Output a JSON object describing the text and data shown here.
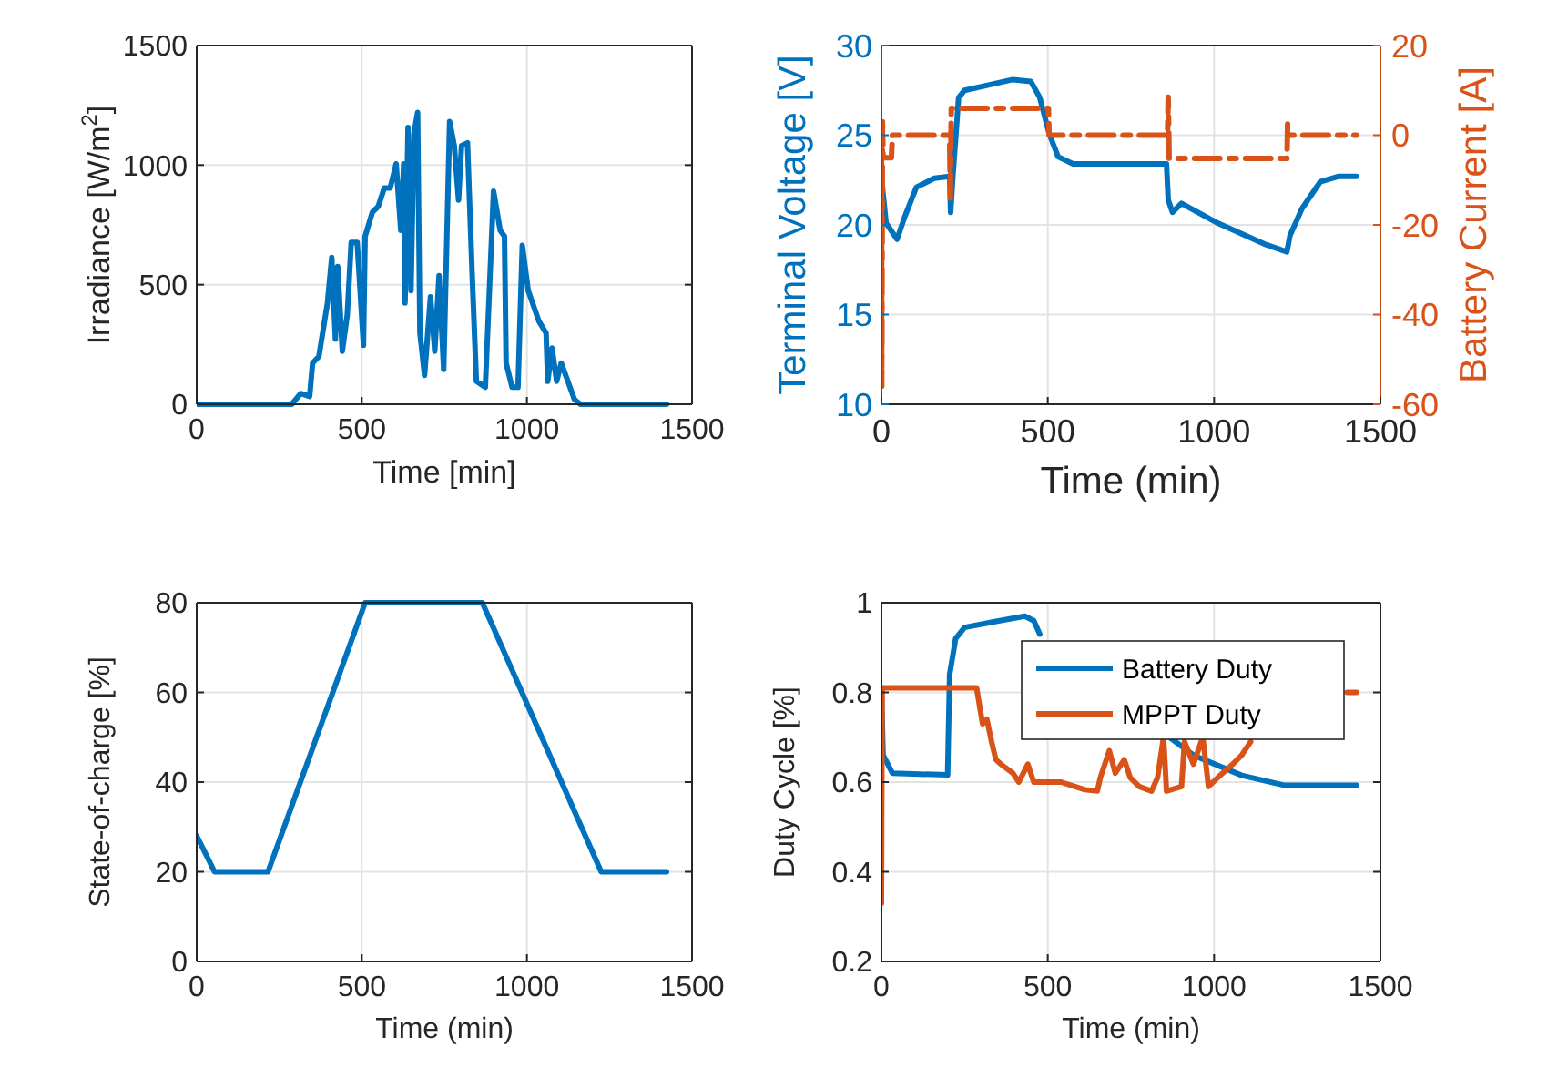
{
  "chart_data": [
    {
      "type": "line",
      "xlabel": "Time [min]",
      "ylabel": "Irradiance [W/m$^{2}$]",
      "xlim": [
        0,
        1500
      ],
      "xticks": [
        0,
        500,
        1000,
        1500
      ],
      "ylim": [
        0,
        1500
      ],
      "yticks": [
        0,
        500,
        1000,
        1500
      ],
      "grid": true,
      "legend": false,
      "line_style": "solid",
      "series": [
        {
          "color": "#0072bd",
          "x": [
            0,
            288,
            315,
            342,
            351,
            370,
            396,
            409,
            420,
            427,
            441,
            456,
            468,
            486,
            505,
            510,
            532,
            550,
            568,
            586,
            604,
            618,
            627,
            631,
            640,
            649,
            658,
            669,
            676,
            690,
            708,
            721,
            734,
            748,
            766,
            780,
            793,
            802,
            820,
            834,
            847,
            874,
            899,
            919,
            932,
            937,
            955,
            973,
            986,
            1004,
            1036,
            1058,
            1063,
            1076,
            1090,
            1104,
            1144,
            1162,
            1423
          ],
          "values": [
            0,
            0,
            45,
            33,
            172,
            200,
            424,
            614,
            273,
            576,
            222,
            374,
            677,
            677,
            247,
            702,
            803,
            828,
            904,
            904,
            1005,
            727,
            1005,
            424,
            1157,
            475,
            1131,
            1220,
            298,
            121,
            449,
            222,
            538,
            146,
            1182,
            1081,
            854,
            1081,
            1093,
            550,
            96,
            71,
            891,
            727,
            702,
            172,
            71,
            71,
            664,
            475,
            348,
            298,
            96,
            235,
            96,
            172,
            20,
            0,
            0
          ]
        }
      ]
    },
    {
      "type": "line",
      "xlabel": "Time (min)",
      "ylabel": "Terminal Voltage [V]",
      "y2label": "Battery Current [A]",
      "xlim": [
        0,
        1500
      ],
      "xticks": [
        0,
        500,
        1000,
        1500
      ],
      "ylim": [
        10,
        30
      ],
      "yticks": [
        10,
        15,
        20,
        25,
        30
      ],
      "y2lim": [
        -60,
        20
      ],
      "y2ticks": [
        -60,
        -40,
        -20,
        0,
        20
      ],
      "grid": true,
      "legend": false,
      "series": [
        {
          "color": "#0072bd",
          "line_style": "solid",
          "x": [
            0,
            3,
            14,
            47,
            69,
            105,
            159,
            205,
            208,
            214,
            232,
            250,
            322,
            395,
            449,
            476,
            504,
            531,
            576,
            857,
            862,
            875,
            902,
            1011,
            1156,
            1219,
            1228,
            1264,
            1319,
            1373,
            1428
          ],
          "values": [
            22.1,
            22.1,
            20.1,
            19.2,
            20.4,
            22.1,
            22.6,
            22.7,
            20.7,
            22.5,
            27.1,
            27.5,
            27.8,
            28.1,
            28,
            27.1,
            25.1,
            23.8,
            23.4,
            23.4,
            21.4,
            20.7,
            21.2,
            20.1,
            18.9,
            18.5,
            19.4,
            20.9,
            22.4,
            22.7,
            22.7
          ]
        },
        {
          "color": "#d95319",
          "axis": "y2",
          "line_style": "dashed",
          "x": [
            0,
            1,
            3,
            5,
            30,
            33,
            205,
            207,
            210,
            502,
            504,
            860,
            862,
            865,
            1219,
            1221,
            1223,
            1428
          ],
          "values": [
            3,
            -56,
            3,
            -5,
            -5,
            0,
            0,
            -14,
            6,
            6,
            0,
            0,
            8.5,
            -5.2,
            -5.2,
            2.5,
            0,
            0
          ]
        }
      ]
    },
    {
      "type": "line",
      "xlabel": "Time (min)",
      "ylabel": "State-of-charge [%]",
      "xlim": [
        0,
        1500
      ],
      "xticks": [
        0,
        500,
        1000,
        1500
      ],
      "ylim": [
        0,
        80
      ],
      "yticks": [
        0,
        20,
        40,
        60,
        80
      ],
      "grid": true,
      "legend": false,
      "line_style": "solid",
      "series": [
        {
          "color": "#0072bd",
          "x": [
            0,
            54,
            216,
            510,
            865,
            1225,
            1423
          ],
          "values": [
            28,
            20,
            20,
            80,
            80,
            20,
            20
          ]
        }
      ]
    },
    {
      "type": "line",
      "xlabel": "Time (min)",
      "ylabel": "Duty Cycle [%]",
      "xlim": [
        0,
        1500
      ],
      "xticks": [
        0,
        500,
        1000,
        1500
      ],
      "ylim": [
        0.2,
        1
      ],
      "yticks": [
        0.2,
        0.4,
        0.6,
        0.8,
        1
      ],
      "grid": true,
      "legend": "top right",
      "line_style": "solid",
      "series": [
        {
          "name": "Battery Duty",
          "color": "#0072bd",
          "x": [
            0,
            5,
            33,
            199,
            205,
            223,
            250,
            341,
            431,
            458,
            476,
            600,
            866,
            938,
            1083,
            1210,
            1428
          ],
          "values": [
            0.81,
            0.66,
            0.62,
            0.616,
            0.84,
            0.92,
            0.945,
            0.958,
            0.97,
            0.96,
            0.93,
            null,
            0.7,
            0.66,
            0.615,
            0.593,
            0.593
          ]
        },
        {
          "name": "MPPT Duty",
          "color": "#d95319",
          "x": [
            0,
            2,
            286,
            304,
            317,
            331,
            344,
            359,
            395,
            413,
            440,
            458,
            504,
            540,
            612,
            649,
            658,
            685,
            703,
            730,
            748,
            775,
            812,
            830,
            848,
            857,
            902,
            911,
            938,
            966,
            983,
            1011,
            1056,
            1083,
            1110,
            1250,
            1400,
            1428
          ],
          "values": [
            0.33,
            0.81,
            0.81,
            0.73,
            0.74,
            0.69,
            0.65,
            0.64,
            0.62,
            0.6,
            0.64,
            0.6,
            0.6,
            0.6,
            0.583,
            0.58,
            0.61,
            0.67,
            0.62,
            0.65,
            0.61,
            0.59,
            0.58,
            0.61,
            0.7,
            0.58,
            0.59,
            0.69,
            0.64,
            0.7,
            0.59,
            0.61,
            0.64,
            0.66,
            0.69,
            null,
            0.8,
            0.8
          ]
        }
      ]
    }
  ]
}
